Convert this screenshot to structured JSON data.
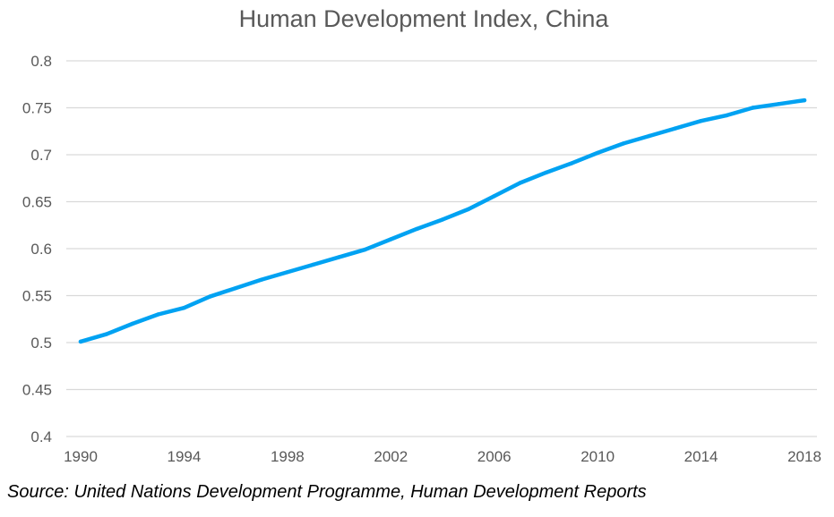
{
  "chart_data": {
    "type": "line",
    "title": "Human Development Index, China",
    "xlabel": "",
    "ylabel": "",
    "x": [
      1990,
      1991,
      1992,
      1993,
      1994,
      1995,
      1996,
      1997,
      1998,
      1999,
      2000,
      2001,
      2002,
      2003,
      2004,
      2005,
      2006,
      2007,
      2008,
      2009,
      2010,
      2011,
      2012,
      2013,
      2014,
      2015,
      2016,
      2017,
      2018
    ],
    "series": [
      {
        "values": [
          0.501,
          0.509,
          0.52,
          0.53,
          0.537,
          0.549,
          0.558,
          0.567,
          0.575,
          0.583,
          0.591,
          0.599,
          0.61,
          0.621,
          0.631,
          0.642,
          0.656,
          0.67,
          0.681,
          0.691,
          0.702,
          0.712,
          0.72,
          0.728,
          0.736,
          0.742,
          0.75,
          0.754,
          0.758
        ],
        "color": "#00A2F2"
      }
    ],
    "xticks": [
      "1990",
      "1994",
      "1998",
      "2002",
      "2006",
      "2010",
      "2014",
      "2018"
    ],
    "yticks": [
      "0.4",
      "0.45",
      "0.5",
      "0.55",
      "0.6",
      "0.65",
      "0.7",
      "0.75",
      "0.8"
    ],
    "xlim": [
      1990,
      2018
    ],
    "ylim": [
      0.4,
      0.8
    ],
    "grid": "horizontal",
    "legend": "none"
  },
  "source": "Source: United Nations Development Programme, Human Development Reports",
  "colors": {
    "line": "#00A2F2",
    "grid": "#D9D9D9",
    "axis_text": "#595959"
  }
}
